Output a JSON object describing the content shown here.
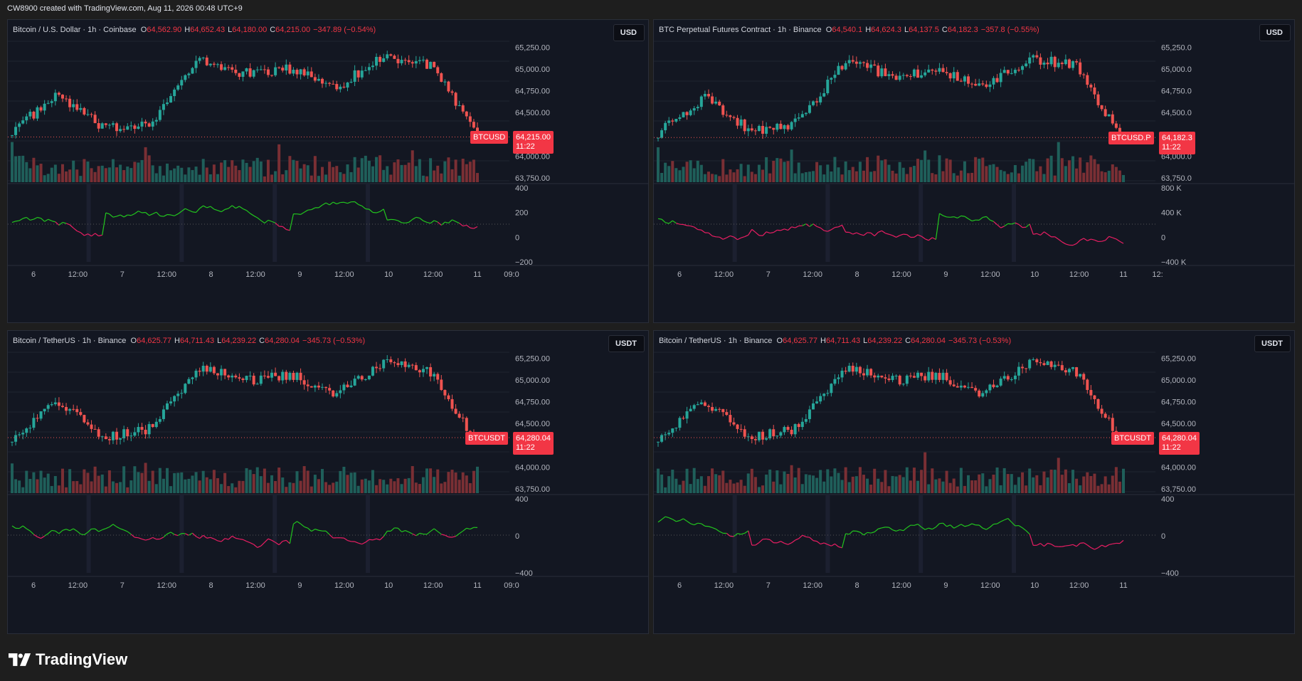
{
  "header": {
    "text": "CW8900 created with TradingView.com, Aug 11, 2026 00:48 UTC+9"
  },
  "brand": {
    "name": "TradingView"
  },
  "colors": {
    "up": "#26a69a",
    "down": "#ef5350",
    "osc_pos": "#22c51e",
    "osc_neg": "#e91e63",
    "background": "#131722",
    "grid": "#1f2430"
  },
  "x_ticks": [
    "6",
    "12:00",
    "7",
    "12:00",
    "8",
    "12:00",
    "9",
    "12:00",
    "10",
    "12:00",
    "11"
  ],
  "panes": [
    {
      "id": "btcusd",
      "legend": {
        "name": "Bitcoin / U.S. Dollar · 1h · Coinbase",
        "o": "64,562.90",
        "h": "64,652.43",
        "l": "64,180.00",
        "c": "64,215.00",
        "chg": "−347.89 (−0.54%)"
      },
      "currency": "USD",
      "symbol_tag": "BTCUSD",
      "last_price": "64,215.00",
      "countdown": "11:22",
      "extra_x_tick": "09:0",
      "price_axis": [
        "65,250.00",
        "65,000.00",
        "64,750.00",
        "64,500.00",
        "64,000.00",
        "63,750.00"
      ],
      "osc_axis": [
        "400",
        "200",
        "0",
        "−200"
      ]
    },
    {
      "id": "btcusdp",
      "legend": {
        "name": "BTC Perpetual Futures Contract · 1h · Binance",
        "o": "64,540.1",
        "h": "64,624.3",
        "l": "64,137.5",
        "c": "64,182.3",
        "chg": "−357.8 (−0.55%)"
      },
      "currency": "USD",
      "symbol_tag": "BTCUSD.P",
      "last_price": "64,182.3",
      "countdown": "11:22",
      "extra_x_tick": "12:",
      "price_axis": [
        "65,250.0",
        "65,000.0",
        "64,750.0",
        "64,500.0",
        "64,000.0",
        "63,750.0"
      ],
      "osc_axis": [
        "800 K",
        "400 K",
        "0",
        "−400 K"
      ]
    },
    {
      "id": "btcusdt-1",
      "legend": {
        "name": "Bitcoin / TetherUS · 1h · Binance",
        "o": "64,625.77",
        "h": "64,711.43",
        "l": "64,239.22",
        "c": "64,280.04",
        "chg": "−345.73 (−0.53%)"
      },
      "currency": "USDT",
      "symbol_tag": "BTCUSDT",
      "last_price": "64,280.04",
      "countdown": "11:22",
      "extra_x_tick": "09:0",
      "price_axis": [
        "65,250.00",
        "65,000.00",
        "64,750.00",
        "64,500.00",
        "64,000.00",
        "63,750.00"
      ],
      "osc_axis": [
        "400",
        "0",
        "−400"
      ]
    },
    {
      "id": "btcusdt-2",
      "legend": {
        "name": "Bitcoin / TetherUS · 1h · Binance",
        "o": "64,625.77",
        "h": "64,711.43",
        "l": "64,239.22",
        "c": "64,280.04",
        "chg": "−345.73 (−0.53%)"
      },
      "currency": "USDT",
      "symbol_tag": "BTCUSDT",
      "last_price": "64,280.04",
      "countdown": "11:22",
      "extra_x_tick": "",
      "price_axis": [
        "65,250.00",
        "65,000.00",
        "64,750.00",
        "64,500.00",
        "64,000.00",
        "63,750.00"
      ],
      "osc_axis": [
        "400",
        "0",
        "−400"
      ]
    }
  ],
  "chart_data": {
    "type": "line",
    "x": [
      "6",
      "12:00",
      "7",
      "12:00",
      "8",
      "12:00",
      "9",
      "12:00",
      "10",
      "12:00",
      "11"
    ],
    "series": [
      {
        "name": "BTCUSD",
        "values": [
          64300,
          64700,
          64300,
          64400,
          65100,
          64950,
          65000,
          64800,
          65150,
          65050,
          64215
        ]
      },
      {
        "name": "BTCUSD.P",
        "values": [
          64270,
          64680,
          64280,
          64380,
          65080,
          64930,
          64980,
          64780,
          65130,
          65030,
          64182
        ]
      },
      {
        "name": "BTCUSDT",
        "values": [
          64350,
          64760,
          64350,
          64450,
          65150,
          65000,
          65050,
          64850,
          65200,
          65100,
          64280
        ]
      }
    ],
    "ylim": [
      63750,
      65300
    ]
  }
}
